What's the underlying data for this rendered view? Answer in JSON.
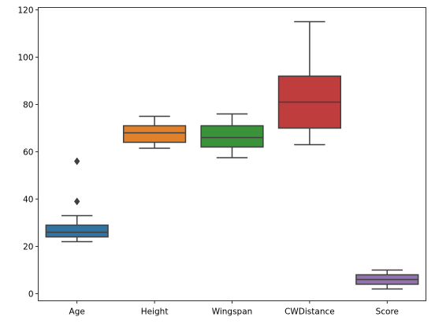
{
  "chart_data": {
    "type": "box",
    "title": "",
    "xlabel": "",
    "ylabel": "",
    "ylim": [
      -3,
      121
    ],
    "yticks": [
      0,
      20,
      40,
      60,
      80,
      100,
      120
    ],
    "grid": false,
    "categories": [
      "Age",
      "Height",
      "Wingspan",
      "CWDistance",
      "Score"
    ],
    "boxes": [
      {
        "name": "Age",
        "color": "#3274a1",
        "whisker_low": 22,
        "q1": 24,
        "median": 26,
        "q3": 29,
        "whisker_high": 33,
        "fliers": [
          39,
          56
        ]
      },
      {
        "name": "Height",
        "color": "#e1812c",
        "whisker_low": 61.5,
        "q1": 64,
        "median": 68,
        "q3": 71,
        "whisker_high": 75,
        "fliers": []
      },
      {
        "name": "Wingspan",
        "color": "#3a923a",
        "whisker_low": 57.5,
        "q1": 62,
        "median": 66,
        "q3": 71,
        "whisker_high": 76,
        "fliers": []
      },
      {
        "name": "CWDistance",
        "color": "#c03d3e",
        "whisker_low": 63,
        "q1": 70,
        "median": 81,
        "q3": 92,
        "whisker_high": 115,
        "fliers": []
      },
      {
        "name": "Score",
        "color": "#9372b2",
        "whisker_low": 2,
        "q1": 4,
        "median": 6,
        "q3": 8,
        "whisker_high": 10,
        "fliers": []
      }
    ]
  }
}
